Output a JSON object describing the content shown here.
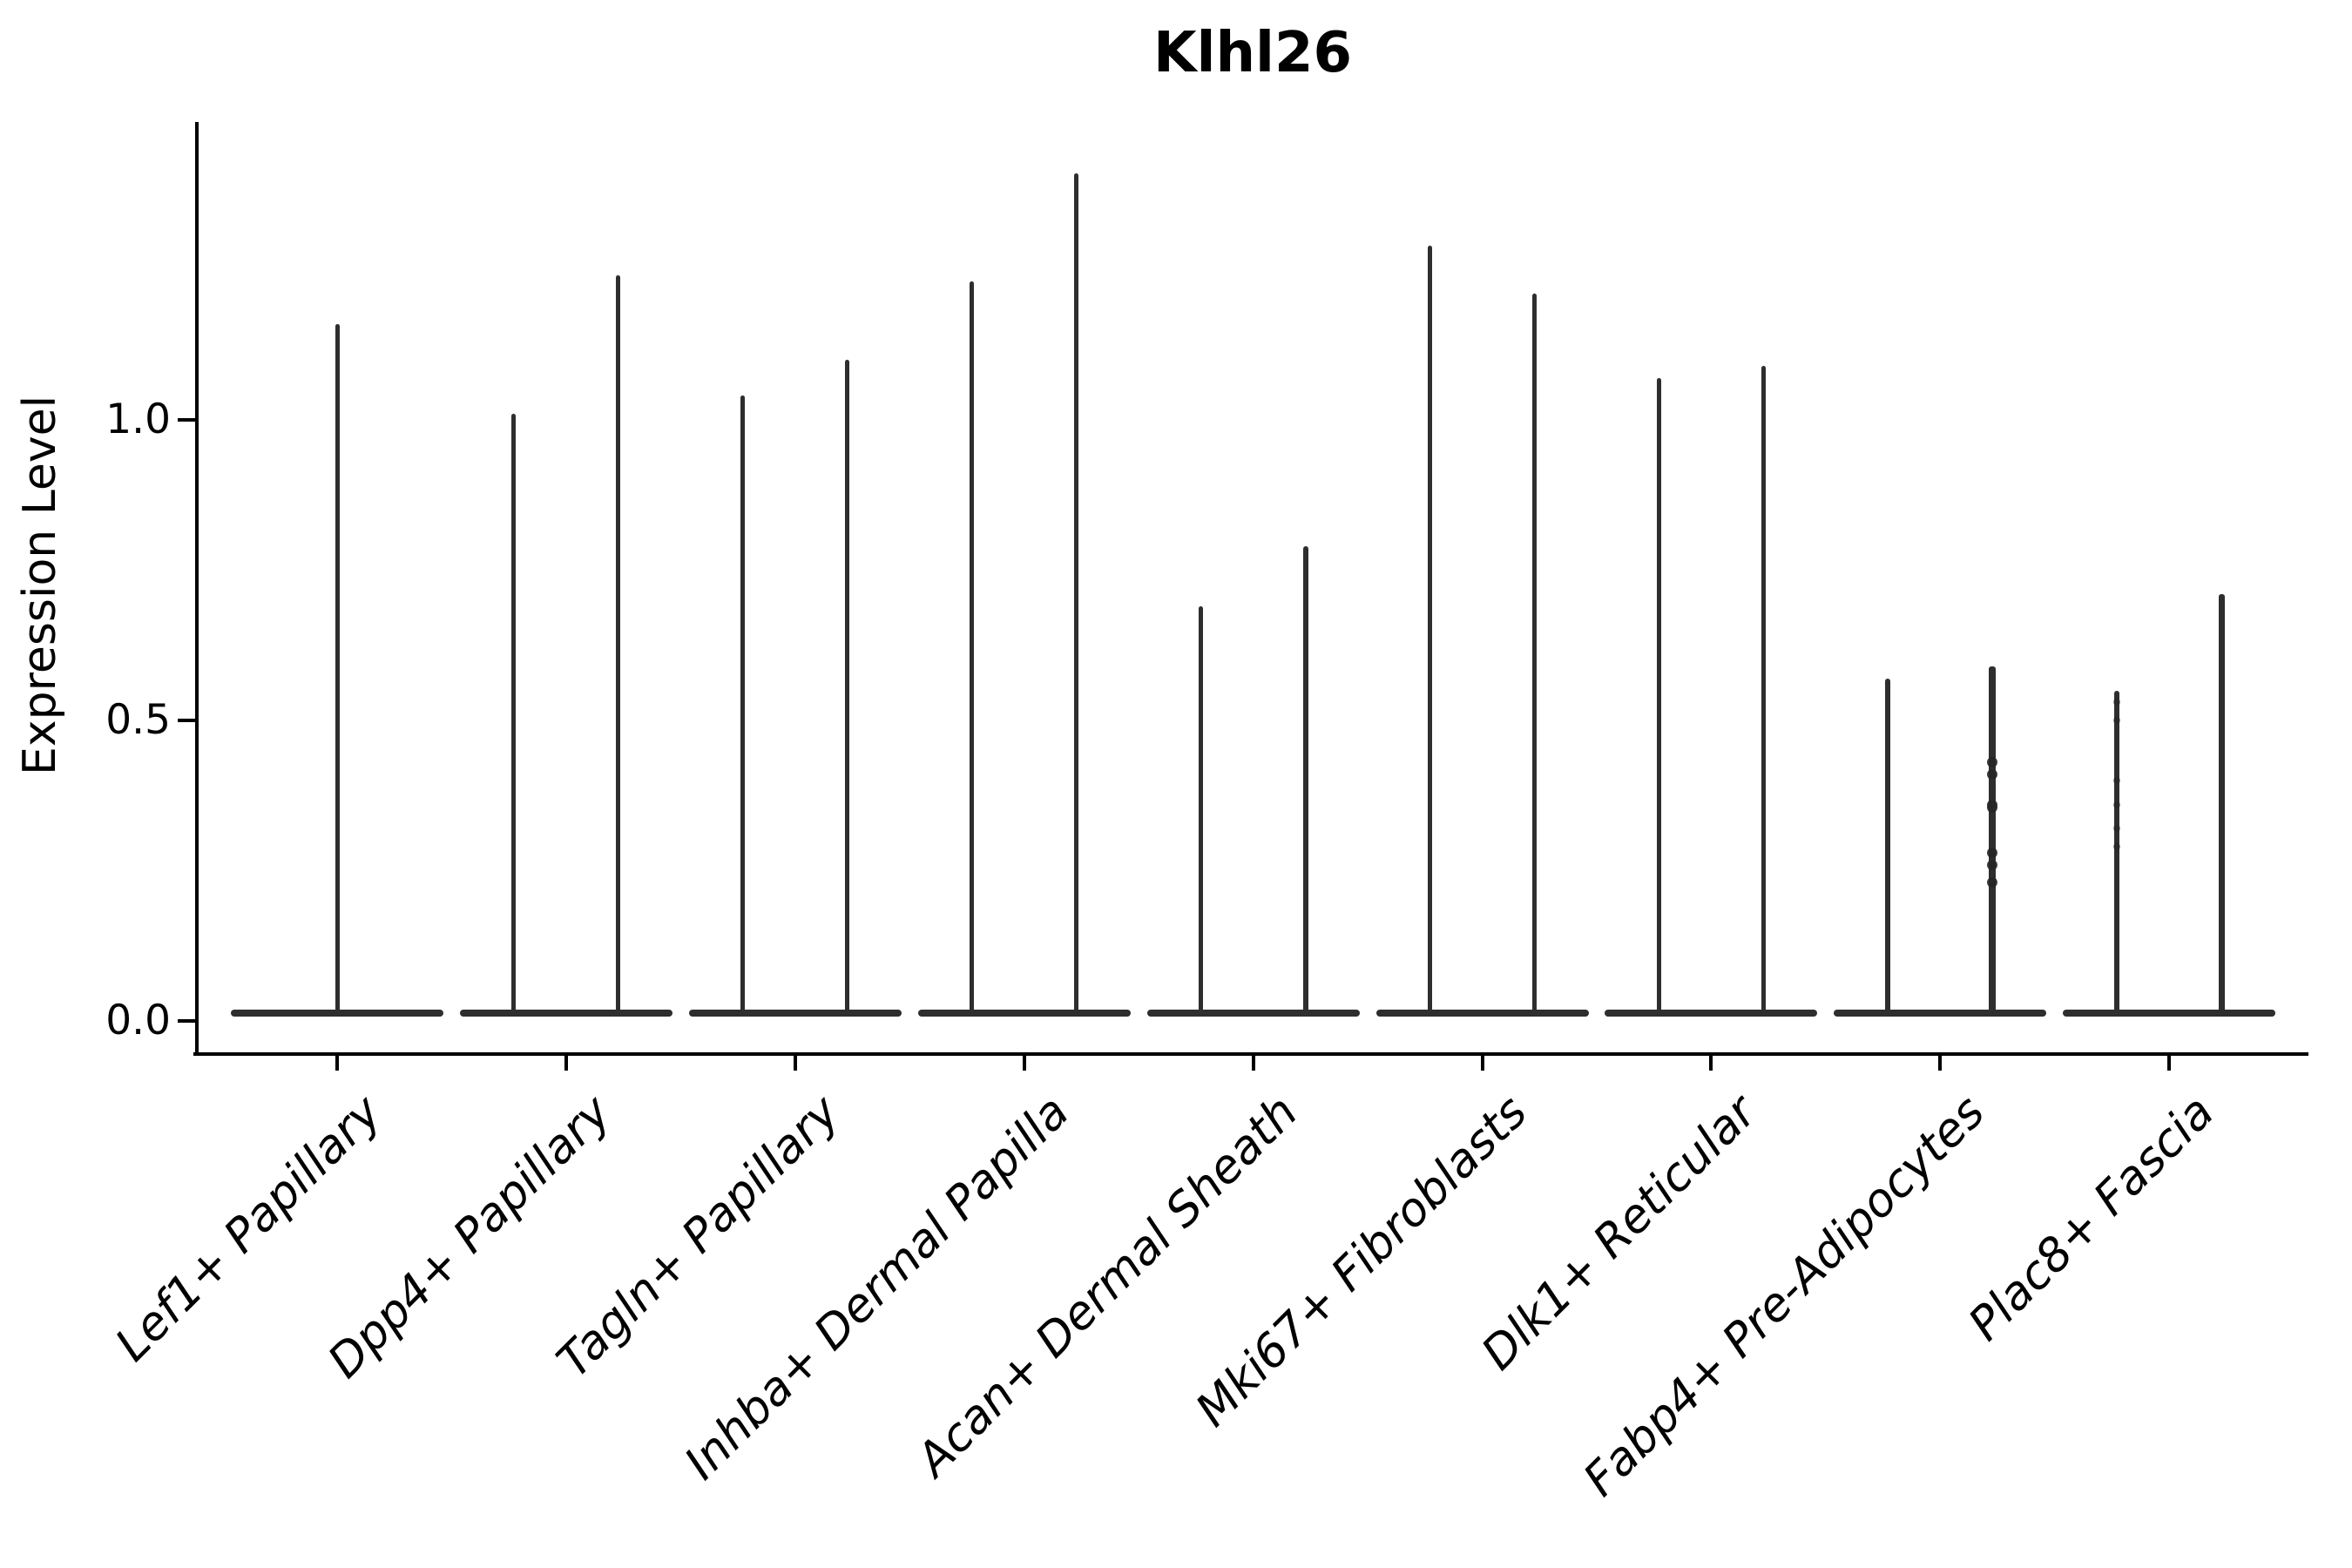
{
  "chart_data": {
    "type": "violin",
    "title": "Klhl26",
    "ylabel": "Expression Level",
    "xlabel": "",
    "ylim": [
      -0.06,
      1.49
    ],
    "grid": false,
    "legend": "none",
    "yticks": [
      {
        "label": "0.0",
        "value": 0.0
      },
      {
        "label": "0.5",
        "value": 0.5
      },
      {
        "label": "1.0",
        "value": 1.0
      }
    ],
    "categories": [
      {
        "label": "Lef1+ Papillary",
        "violins": [
          {
            "max": 1.16,
            "thickness": 5,
            "dots": []
          }
        ]
      },
      {
        "label": "Dpp4+ Papillary",
        "violins": [
          {
            "max": 1.01,
            "thickness": 5,
            "dots": []
          },
          {
            "max": 1.24,
            "thickness": 5,
            "dots": []
          }
        ]
      },
      {
        "label": "Tagln+ Papillary",
        "violins": [
          {
            "max": 1.04,
            "thickness": 5,
            "dots": []
          },
          {
            "max": 1.1,
            "thickness": 5,
            "dots": []
          }
        ]
      },
      {
        "label": "Inhba+ Dermal Papilla",
        "violins": [
          {
            "max": 1.23,
            "thickness": 5,
            "dots": []
          },
          {
            "max": 1.41,
            "thickness": 5,
            "dots": []
          }
        ]
      },
      {
        "label": "Acan+ Dermal Sheath",
        "violins": [
          {
            "max": 0.69,
            "thickness": 5,
            "dots": []
          },
          {
            "max": 0.79,
            "thickness": 6,
            "dots": []
          }
        ]
      },
      {
        "label": "Mki67+ Fibroblasts",
        "violins": [
          {
            "max": 1.29,
            "thickness": 5,
            "dots": []
          },
          {
            "max": 1.21,
            "thickness": 5,
            "dots": []
          }
        ]
      },
      {
        "label": "Dlk1+ Reticular",
        "violins": [
          {
            "max": 1.07,
            "thickness": 5,
            "dots": []
          },
          {
            "max": 1.09,
            "thickness": 5,
            "dots": []
          }
        ]
      },
      {
        "label": "Fabp4+ Pre-Adipocytes",
        "violins": [
          {
            "max": 0.57,
            "thickness": 6,
            "dots": []
          },
          {
            "max": 0.59,
            "thickness": 8,
            "dot_size": 12,
            "dots": [
              0.43,
              0.41,
              0.36,
              0.355,
              0.28,
              0.26,
              0.23
            ]
          }
        ]
      },
      {
        "label": "Plac8+ Fascia",
        "violins": [
          {
            "max": 0.55,
            "thickness": 6,
            "dot_size": 8,
            "dots": [
              0.53,
              0.5,
              0.4,
              0.36,
              0.32,
              0.29
            ]
          },
          {
            "max": 0.71,
            "thickness": 7,
            "dots": []
          }
        ]
      }
    ]
  },
  "colors": {
    "background": "#ffffff",
    "ink": "#000000",
    "violin": "#2e2e2e",
    "dot": "#262626"
  }
}
